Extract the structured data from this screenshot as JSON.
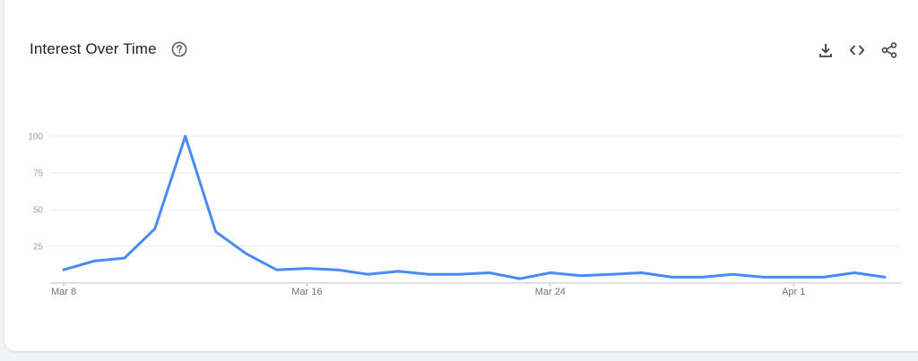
{
  "header": {
    "title": "Interest Over Time",
    "help_icon": "help-circle-icon",
    "actions": [
      {
        "name": "download",
        "icon": "download-icon"
      },
      {
        "name": "embed",
        "icon": "code-icon"
      },
      {
        "name": "share",
        "icon": "share-icon"
      }
    ]
  },
  "colors": {
    "series": "#4a8af4",
    "grid": "#e8eaed",
    "axis": "#bdc1c6",
    "icon": "#3c4043"
  },
  "chart_data": {
    "type": "line",
    "title": "",
    "xlabel": "",
    "ylabel": "",
    "ylim": [
      0,
      100
    ],
    "yticks": [
      25,
      50,
      75,
      100
    ],
    "xtick_labels": [
      {
        "label": "Mar 8",
        "index": 0
      },
      {
        "label": "Mar 16",
        "index": 8
      },
      {
        "label": "Mar 24",
        "index": 16
      },
      {
        "label": "Apr 1",
        "index": 24
      }
    ],
    "grid": true,
    "legend": "none",
    "x": [
      "Mar 8",
      "Mar 9",
      "Mar 10",
      "Mar 11",
      "Mar 12",
      "Mar 13",
      "Mar 14",
      "Mar 15",
      "Mar 16",
      "Mar 17",
      "Mar 18",
      "Mar 19",
      "Mar 20",
      "Mar 21",
      "Mar 22",
      "Mar 23",
      "Mar 24",
      "Mar 25",
      "Mar 26",
      "Mar 27",
      "Mar 28",
      "Mar 29",
      "Mar 30",
      "Mar 31",
      "Apr 1",
      "Apr 2",
      "Apr 3",
      "Apr 4"
    ],
    "series": [
      {
        "values": [
          9,
          15,
          17,
          37,
          100,
          35,
          20,
          9,
          10,
          9,
          6,
          8,
          6,
          6,
          7,
          3,
          7,
          5,
          6,
          7,
          4,
          4,
          6,
          4,
          4,
          4,
          7,
          4
        ]
      }
    ]
  }
}
